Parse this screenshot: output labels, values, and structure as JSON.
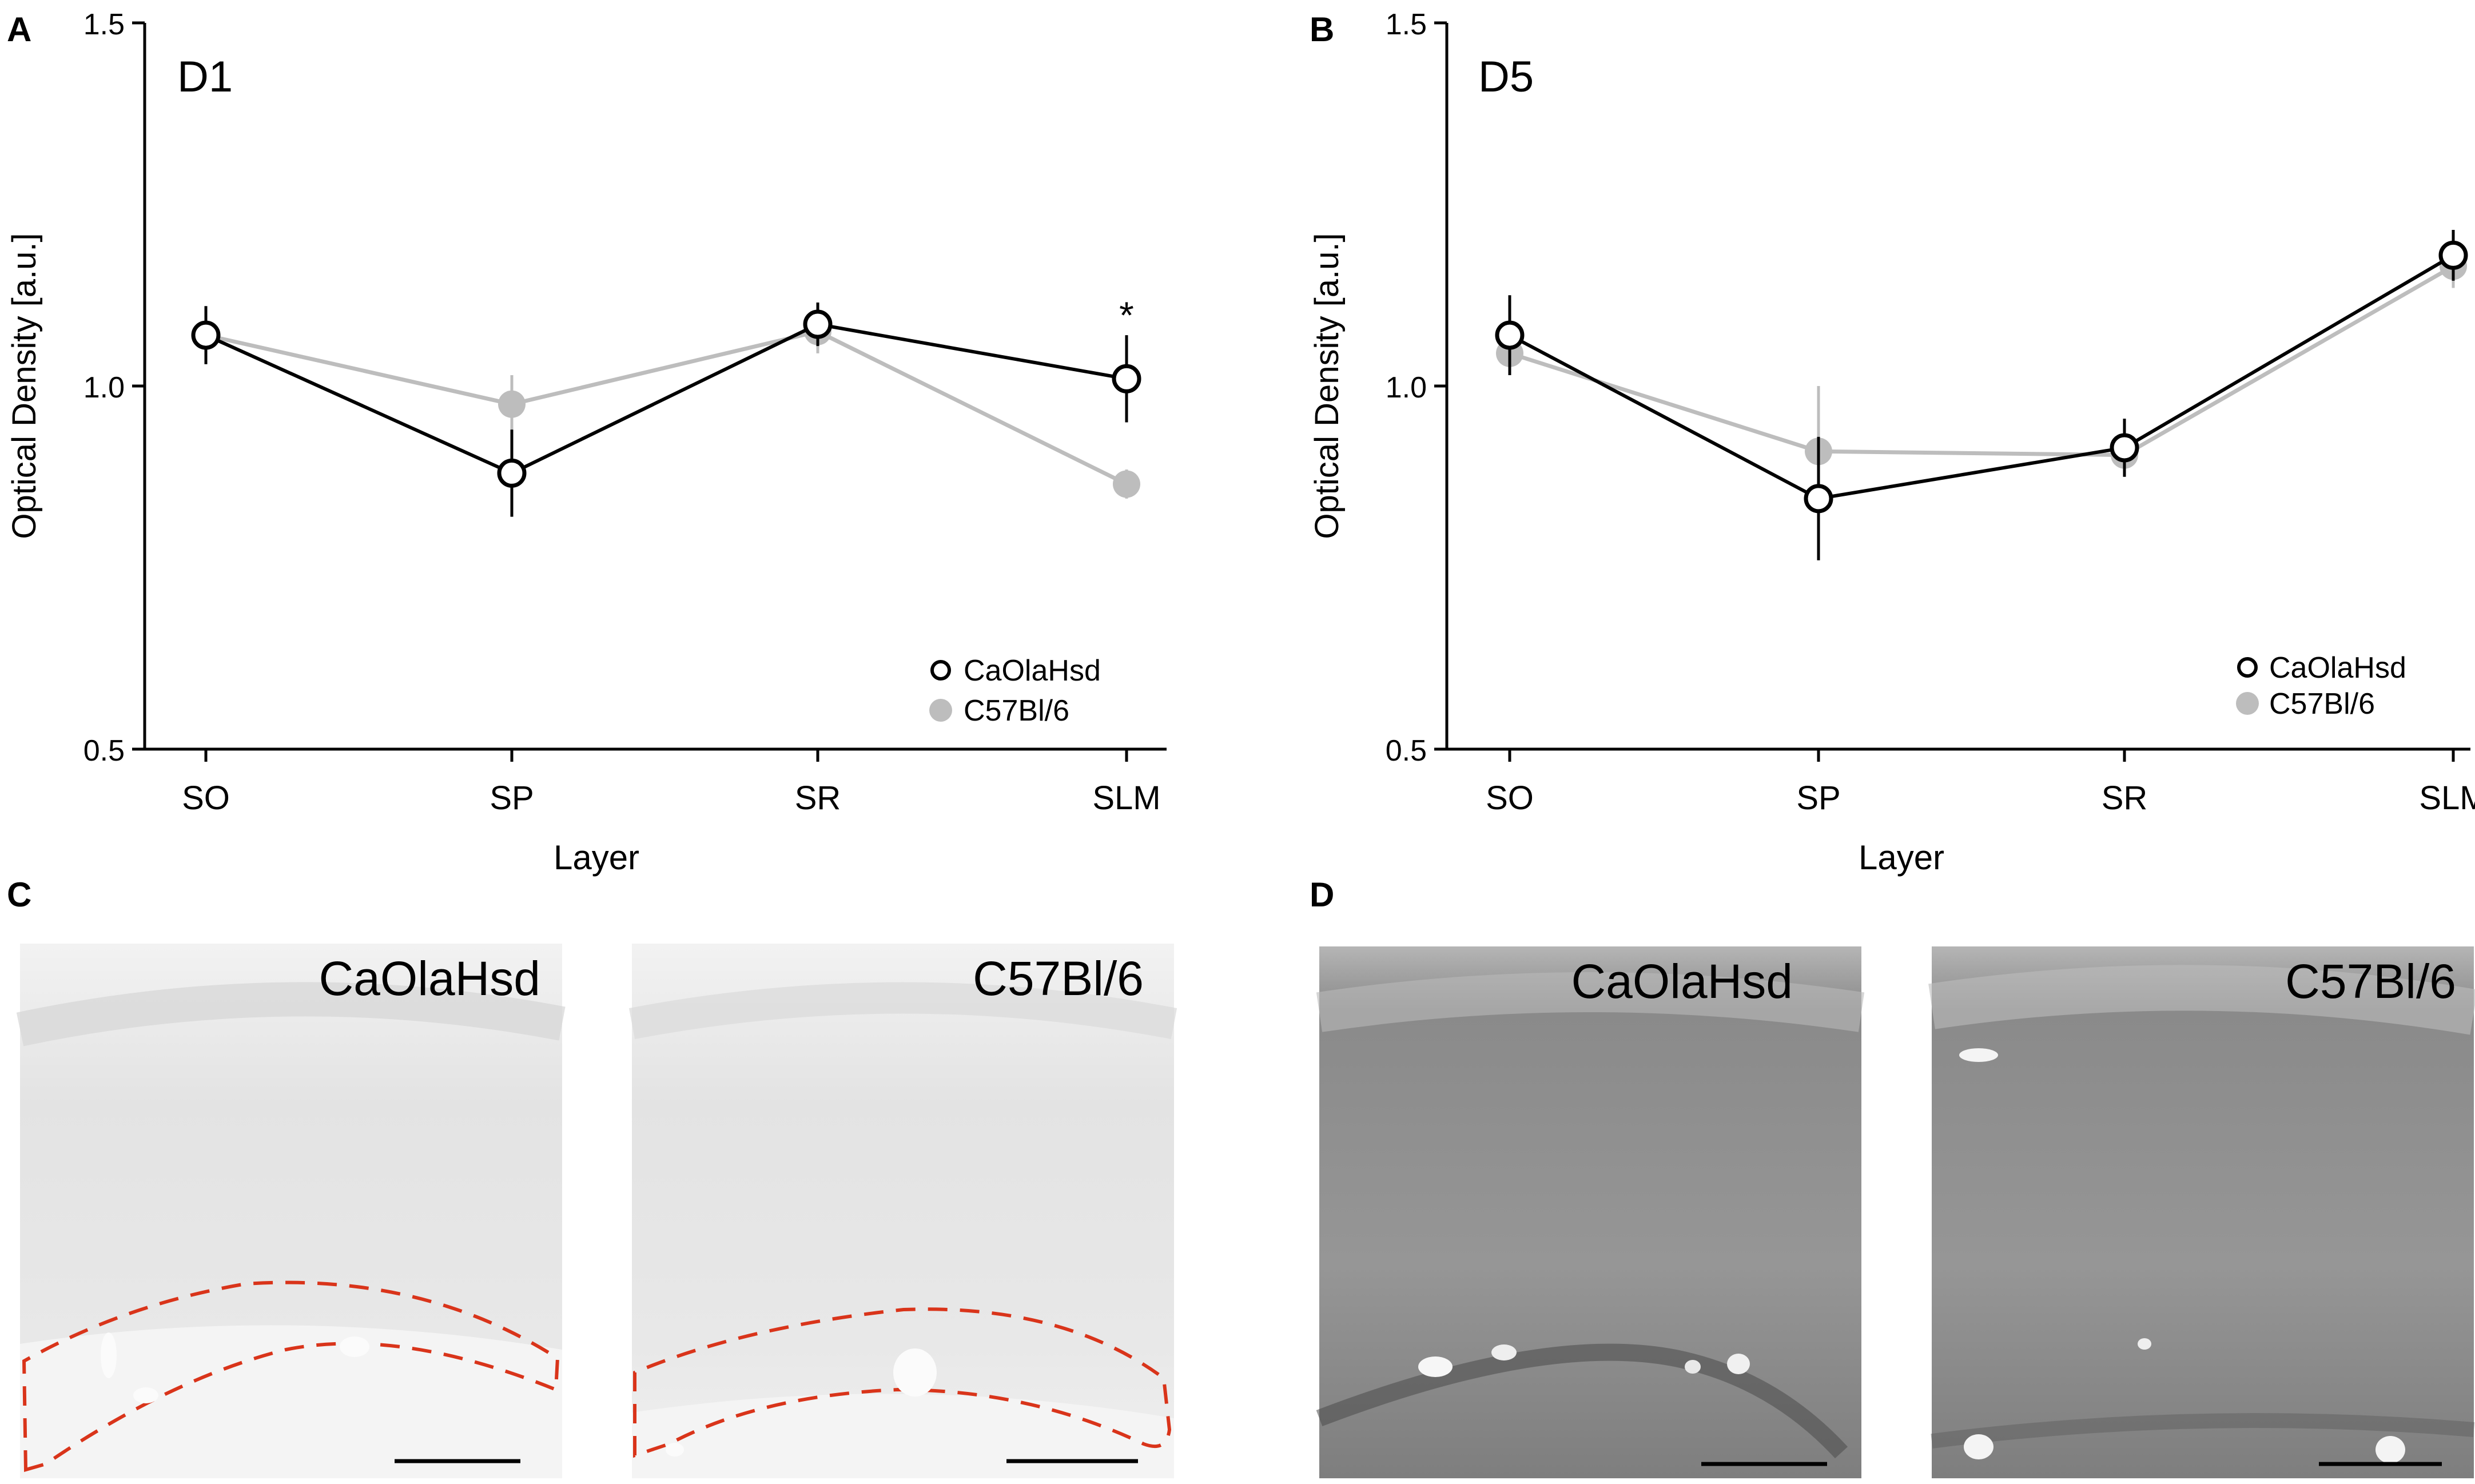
{
  "chart_data": [
    {
      "panel": "A",
      "type": "line",
      "title": "D1",
      "xlabel": "Layer",
      "ylabel": "Optical Density [a.u.]",
      "categories": [
        "SO",
        "SP",
        "SR",
        "SLM"
      ],
      "ylim": [
        0.5,
        1.5
      ],
      "yticks": [
        "0.5",
        "1.0",
        "1.5"
      ],
      "series": [
        {
          "name": "CaOlaHsd",
          "values": [
            1.07,
            0.88,
            1.085,
            1.01
          ],
          "errors": [
            0.04,
            0.06,
            0.03,
            0.06
          ],
          "color": "#000000",
          "marker": "open-circle"
        },
        {
          "name": "C57Bl/6",
          "values": [
            1.07,
            0.975,
            1.075,
            0.865
          ],
          "errors": [
            0.03,
            0.04,
            0.03,
            0.02
          ],
          "color": "#bdbdbd",
          "marker": "filled-circle"
        }
      ],
      "annotations": [
        {
          "category": "SLM",
          "text": "*"
        }
      ],
      "legend": "bottom-right"
    },
    {
      "panel": "B",
      "type": "line",
      "title": "D5",
      "xlabel": "Layer",
      "ylabel": "Optical Density [a.u.]",
      "categories": [
        "SO",
        "SP",
        "SR",
        "SLM"
      ],
      "ylim": [
        0.5,
        1.5
      ],
      "yticks": [
        "0.5",
        "1.0",
        "1.5"
      ],
      "series": [
        {
          "name": "CaOlaHsd",
          "values": [
            1.07,
            0.845,
            0.915,
            1.18
          ],
          "errors": [
            0.055,
            0.085,
            0.04,
            0.035
          ],
          "color": "#000000",
          "marker": "open-circle"
        },
        {
          "name": "C57Bl/6",
          "values": [
            1.045,
            0.91,
            0.905,
            1.165
          ],
          "errors": [
            0.03,
            0.09,
            0.03,
            0.03
          ],
          "color": "#bdbdbd",
          "marker": "filled-circle"
        }
      ],
      "annotations": [],
      "legend": "bottom-right"
    }
  ],
  "panels": {
    "a_letter": "A",
    "b_letter": "B",
    "c_letter": "C",
    "d_letter": "D"
  },
  "micrographs": {
    "c_left_label": "CaOlaHsd",
    "c_right_label": "C57Bl/6",
    "d_left_label": "CaOlaHsd",
    "d_right_label": "C57Bl/6",
    "c_background": "#ebebeb",
    "d_background": "#8c8c8c",
    "outline_color": "#d9341a"
  }
}
